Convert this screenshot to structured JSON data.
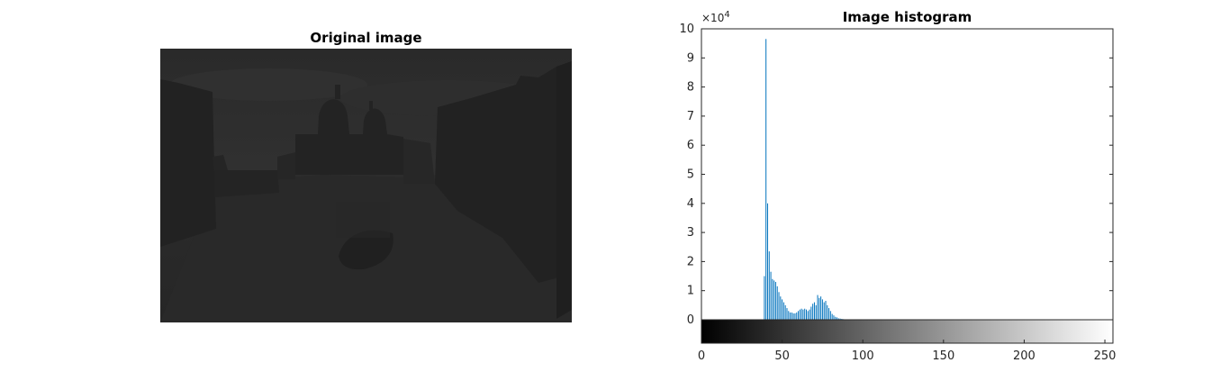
{
  "figure": {
    "left_title": "Original image",
    "right_title": "Image histogram"
  },
  "colors": {
    "bar": "#0072BD",
    "axis": "#262626"
  },
  "chart_data": {
    "type": "bar",
    "title": "Image histogram",
    "xlabel": "",
    "ylabel": "",
    "xlim": [
      0,
      255
    ],
    "ylim": [
      0,
      100000
    ],
    "y_exponent_label": "×10",
    "y_exponent": "4",
    "x_ticks": [
      0,
      50,
      100,
      150,
      200,
      250
    ],
    "x_tick_labels": [
      "0",
      "50",
      "100",
      "150",
      "200",
      "250"
    ],
    "y_ticks": [
      0,
      10000,
      20000,
      30000,
      40000,
      50000,
      60000,
      70000,
      80000,
      90000,
      100000
    ],
    "y_tick_labels": [
      "0",
      "1",
      "2",
      "3",
      "4",
      "5",
      "6",
      "7",
      "8",
      "9",
      "10"
    ],
    "grid": false,
    "colorbar": "grayscale 0-255 below x-axis",
    "x": [
      39,
      40,
      41,
      42,
      43,
      44,
      45,
      46,
      47,
      48,
      49,
      50,
      51,
      52,
      53,
      54,
      55,
      56,
      57,
      58,
      59,
      60,
      61,
      62,
      63,
      64,
      65,
      66,
      67,
      68,
      69,
      70,
      71,
      72,
      73,
      74,
      75,
      76,
      77,
      78,
      79,
      80,
      81,
      82,
      83,
      84,
      85,
      86,
      87,
      88,
      89,
      90
    ],
    "values": [
      15000,
      96500,
      40000,
      23500,
      16500,
      14000,
      13500,
      13000,
      11500,
      9500,
      8000,
      7000,
      6000,
      5000,
      4000,
      3000,
      2500,
      2500,
      2200,
      2200,
      2500,
      3000,
      3500,
      3800,
      3500,
      3800,
      3500,
      3000,
      3500,
      4500,
      5500,
      6000,
      5000,
      8500,
      7500,
      8000,
      7000,
      6000,
      6500,
      5000,
      4000,
      3000,
      2000,
      1500,
      1000,
      800,
      500,
      400,
      300,
      200,
      100,
      50
    ]
  }
}
